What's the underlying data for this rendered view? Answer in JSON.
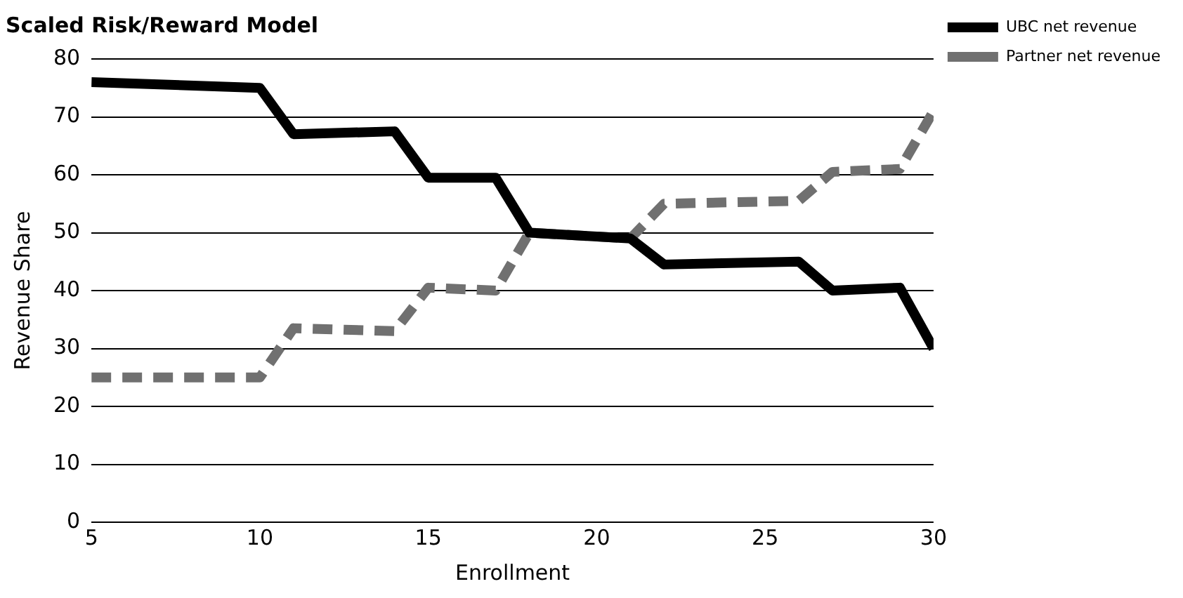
{
  "chart_data": {
    "type": "line",
    "title": "Scaled Risk/Reward Model",
    "xlabel": "Enrollment",
    "ylabel": "Revenue Share",
    "x": [
      5,
      10,
      11,
      14,
      15,
      17,
      18,
      21,
      22,
      26,
      27,
      29,
      30
    ],
    "series": [
      {
        "name": "UBC net revenue",
        "color": "#000000",
        "line_style": "solid",
        "values": [
          76,
          75,
          67,
          67.5,
          59.5,
          59.5,
          50,
          49,
          44.5,
          45,
          40,
          40.5,
          30
        ]
      },
      {
        "name": "Partner net revenue",
        "color": "#707070",
        "line_style": "dashed",
        "values": [
          25,
          25,
          33.5,
          33,
          40.5,
          40,
          50,
          49,
          55,
          55.5,
          60.5,
          61,
          71
        ]
      }
    ],
    "xlim": [
      5,
      30
    ],
    "xticks": [
      5,
      10,
      15,
      20,
      25,
      30
    ],
    "ylim": [
      0,
      80
    ],
    "yticks": [
      0,
      10,
      20,
      30,
      40,
      50,
      60,
      70,
      80
    ],
    "grid": "y",
    "legend": "top right",
    "marker": "none"
  }
}
